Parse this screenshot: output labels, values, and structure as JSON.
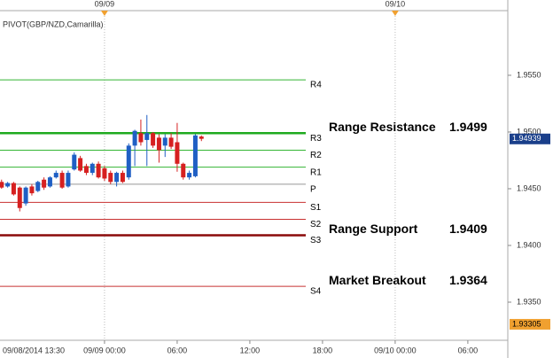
{
  "chart_data": {
    "type": "candlestick",
    "indicator_label": "PIVOT(GBP/NZD,Camarilla)",
    "start_label": "09/08/2014 13:30",
    "x": [
      -8.5,
      -8,
      -7.5,
      -7,
      -6.5,
      -6,
      -5.5,
      -5,
      -4.5,
      -4,
      -3.5,
      -3,
      -2.5,
      -2,
      -1.5,
      -1,
      -0.5,
      0,
      0.5,
      1,
      1.5,
      2,
      2.5,
      3,
      3.5,
      4,
      4.5,
      5,
      5.5,
      6,
      6.5,
      7,
      7.5,
      8
    ],
    "open": [
      1.9456,
      1.9452,
      1.9455,
      1.9451,
      1.9437,
      1.9452,
      1.9448,
      1.9458,
      1.9452,
      1.946,
      1.9464,
      1.9452,
      1.9467,
      1.9477,
      1.947,
      1.9464,
      1.9472,
      1.9468,
      1.9464,
      1.9456,
      1.9464,
      1.946,
      1.9488,
      1.9499,
      1.9493,
      1.9499,
      1.9495,
      1.9488,
      1.9495,
      1.9491,
      1.9472,
      1.946,
      1.9461,
      1.9496
    ],
    "high": [
      1.9458,
      1.9456,
      1.9456,
      1.9452,
      1.9452,
      1.9454,
      1.9457,
      1.946,
      1.9461,
      1.9466,
      1.9466,
      1.9466,
      1.9482,
      1.9479,
      1.9472,
      1.9473,
      1.9474,
      1.947,
      1.9466,
      1.9465,
      1.9466,
      1.949,
      1.9502,
      1.9511,
      1.9515,
      1.95,
      1.9498,
      1.9498,
      1.9499,
      1.9508,
      1.9473,
      1.9466,
      1.9498,
      1.9497
    ],
    "low": [
      1.945,
      1.9451,
      1.9444,
      1.943,
      1.9435,
      1.9444,
      1.9447,
      1.9449,
      1.9451,
      1.9459,
      1.945,
      1.9451,
      1.9466,
      1.9465,
      1.9462,
      1.9462,
      1.9459,
      1.9457,
      1.9454,
      1.9452,
      1.9455,
      1.9458,
      1.947,
      1.9488,
      1.947,
      1.9486,
      1.9473,
      1.9478,
      1.9485,
      1.9465,
      1.9458,
      1.9458,
      1.946,
      1.9492
    ],
    "close": [
      1.9451,
      1.9455,
      1.9445,
      1.9433,
      1.9451,
      1.9446,
      1.9456,
      1.9451,
      1.946,
      1.9464,
      1.9451,
      1.9464,
      1.948,
      1.9466,
      1.9464,
      1.9472,
      1.946,
      1.9459,
      1.9456,
      1.9464,
      1.9456,
      1.9488,
      1.9501,
      1.9491,
      1.9499,
      1.9488,
      1.9484,
      1.9495,
      1.9487,
      1.9472,
      1.946,
      1.9464,
      1.9497,
      1.9494
    ],
    "up_color": "#1f5fc4",
    "down_color": "#d62020",
    "levels": [
      {
        "name": "R4",
        "value": 1.9546,
        "color": "#33b533",
        "width": 1
      },
      {
        "name": "R3",
        "value": 1.9499,
        "color": "#1faa1f",
        "width": 2.5
      },
      {
        "name": "R2",
        "value": 1.9484,
        "color": "#33b533",
        "width": 1
      },
      {
        "name": "R1",
        "value": 1.9469,
        "color": "#33b533",
        "width": 1
      },
      {
        "name": "P",
        "value": 1.9454,
        "color": "#999999",
        "width": 1
      },
      {
        "name": "S1",
        "value": 1.9438,
        "color": "#c83030",
        "width": 1
      },
      {
        "name": "S2",
        "value": 1.9423,
        "color": "#c83030",
        "width": 1
      },
      {
        "name": "S3",
        "value": 1.9409,
        "color": "#8b0a0a",
        "width": 2.5
      },
      {
        "name": "S4",
        "value": 1.9364,
        "color": "#c83030",
        "width": 1
      }
    ],
    "annotations": [
      {
        "label": "Range Resistance",
        "value": 1.9499
      },
      {
        "label": "Range Support",
        "value": 1.9409
      },
      {
        "label": "Market Breakout",
        "value": 1.9364
      }
    ],
    "last_price": 1.94939,
    "low_marker": 1.93305,
    "ylim": [
      1.93164,
      1.9607
    ],
    "yticks": [
      {
        "value": 1.955,
        "label": "1.9550"
      },
      {
        "value": 1.95,
        "label": "1.9500"
      },
      {
        "value": 1.945,
        "label": "1.9450"
      },
      {
        "value": 1.94,
        "label": "1.9400"
      },
      {
        "value": 1.935,
        "label": "1.9350"
      }
    ],
    "xlim": [
      -8.63,
      33.3
    ],
    "xticks": [
      {
        "value": 0,
        "label": "09/09 00:00"
      },
      {
        "value": 6,
        "label": "06:00"
      },
      {
        "value": 12,
        "label": "12:00"
      },
      {
        "value": 18,
        "label": "18:00"
      },
      {
        "value": 24,
        "label": "09/10 00:00"
      },
      {
        "value": 30,
        "label": "06:00"
      }
    ],
    "day_markers": [
      {
        "value": 0,
        "label": "09/09"
      },
      {
        "value": 24,
        "label": "09/10"
      }
    ]
  }
}
